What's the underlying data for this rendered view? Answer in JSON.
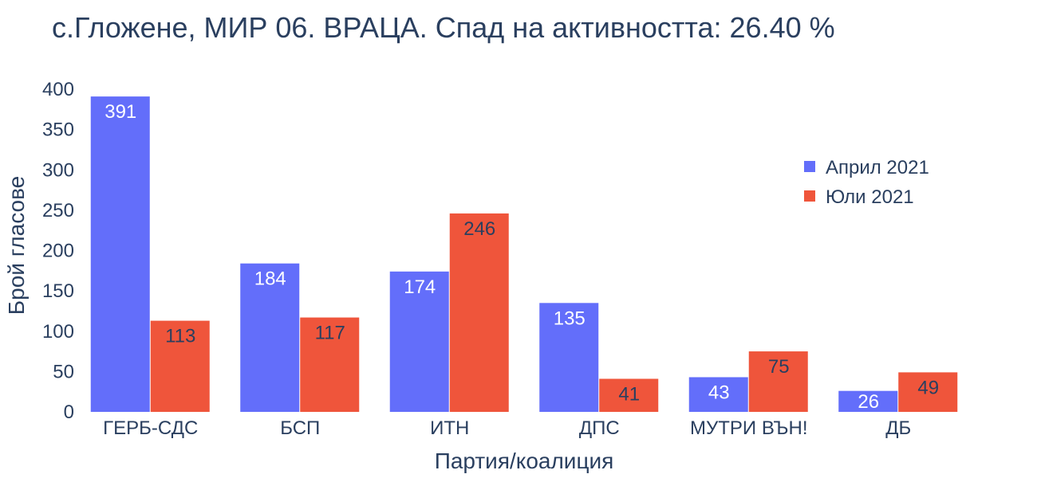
{
  "chart_data": {
    "type": "bar",
    "title": "с.Гложене, МИР 06. ВРАЦА. Спад на активността: 26.40 %",
    "xlabel": "Партия/коалиция",
    "ylabel": "Брой гласове",
    "categories": [
      "ГЕРБ-СДС",
      "БСП",
      "ИТН",
      "ДПС",
      "МУТРИ ВЪН!",
      "ДБ"
    ],
    "series": [
      {
        "name": "Април 2021",
        "color": "#636efa",
        "values": [
          391,
          184,
          174,
          135,
          43,
          26
        ]
      },
      {
        "name": "Юли 2021",
        "color": "#ef553b",
        "values": [
          113,
          117,
          246,
          41,
          75,
          49
        ]
      }
    ],
    "ylim": [
      0,
      400
    ],
    "yticks": [
      0,
      50,
      100,
      150,
      200,
      250,
      300,
      350,
      400
    ],
    "grid": false,
    "legend_position": "top-right"
  }
}
